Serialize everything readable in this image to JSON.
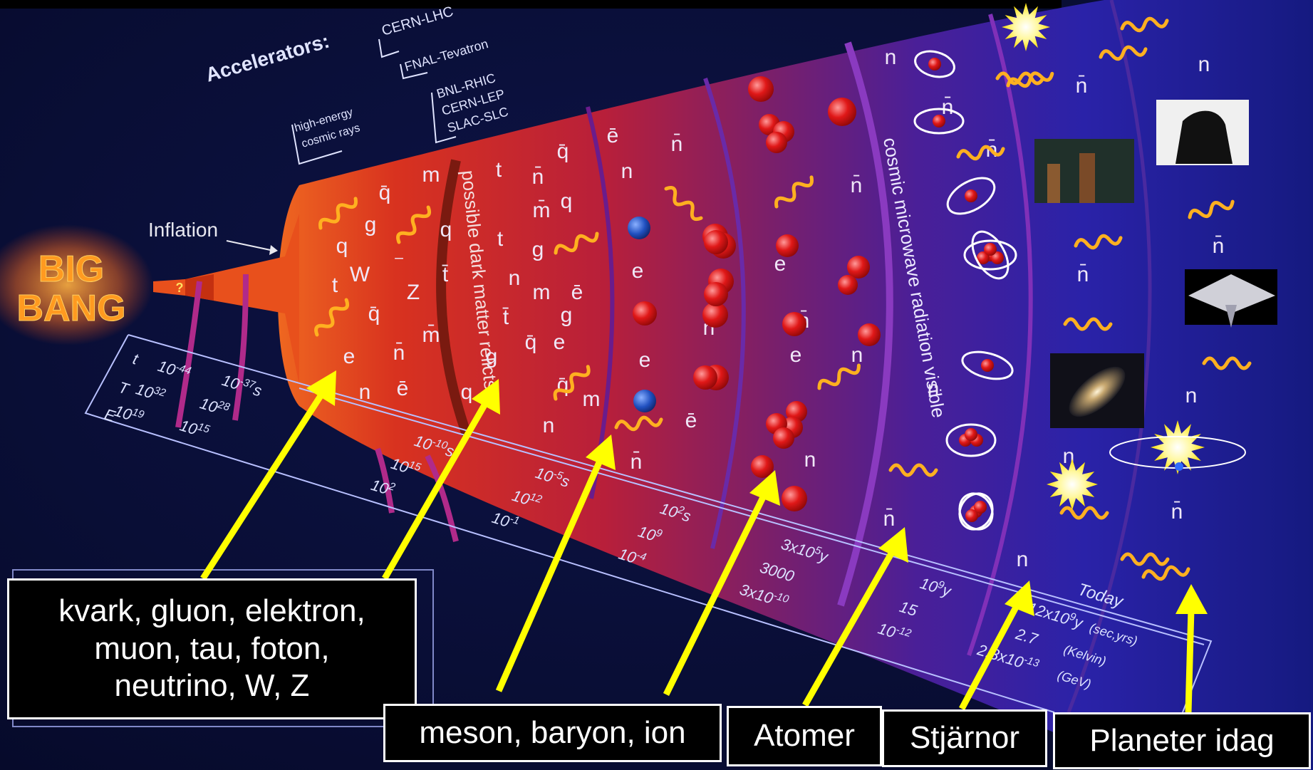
{
  "accelerators": {
    "heading": "Accelerators:",
    "cern_lhc": "CERN-LHC",
    "fnal": "FNAL-Tevatron",
    "group": [
      "BNL-RHIC",
      "CERN-LEP",
      "SLAC-SLC"
    ],
    "cosmic": [
      "high-energy",
      "cosmic rays"
    ]
  },
  "big_bang": {
    "line1": "BIG",
    "line2": "BANG"
  },
  "inflation_label": "Inflation",
  "question_mark": "?",
  "band_labels": {
    "dark_matter": "possible dark matter relicts",
    "cmb": "cosmic microwave radiation visible"
  },
  "timeline": {
    "row_labels": [
      "t",
      "T",
      "E"
    ],
    "first": {
      "t": "10",
      "t_exp": "-44",
      "T": "10",
      "T_exp": "32",
      "E": "10",
      "E_exp": "19"
    },
    "second": {
      "t": "10",
      "t_exp": "-37",
      "t_unit": "s",
      "T": "10",
      "T_exp": "28",
      "E": "10",
      "E_exp": "15"
    },
    "third": {
      "t": "10",
      "t_exp": "-10",
      "t_unit": "s",
      "T": "10",
      "T_exp": "15",
      "E": "10",
      "E_exp": "2"
    },
    "fourth": {
      "t": "10",
      "t_exp": "-5",
      "t_unit": "s",
      "T": "10",
      "T_exp": "12",
      "E": "10",
      "E_exp": "-1"
    },
    "fifth": {
      "t": "10",
      "t_exp": "2",
      "t_unit": "s",
      "T": "10",
      "T_exp": "9",
      "E": "10",
      "E_exp": "-4"
    },
    "sixth": {
      "t": "3x10",
      "t_exp": "5",
      "t_unit": "y",
      "T": "3000",
      "E": "3x10",
      "E_exp": "-10"
    },
    "seventh": {
      "t": "10",
      "t_exp": "9",
      "t_unit": "y",
      "T": "15",
      "E": "10",
      "E_exp": "-12"
    },
    "today": {
      "label": "Today",
      "t": "12x10",
      "t_exp": "9",
      "t_unit": "y",
      "t_units": "(sec,yrs)",
      "T": "2.7",
      "T_units": "(Kelvin)",
      "E": "2.3x10",
      "E_exp": "-13",
      "E_units": "(GeV)"
    }
  },
  "captions": {
    "quarks": "kvark, gluon, elektron,\nmuon, tau, foton,\nneutrino, W, Z",
    "hadrons": "meson, baryon, ion",
    "atoms": "Atomer",
    "stars": "Stjärnor",
    "planets": "Planeter idag"
  },
  "colors": {
    "background": "#000000",
    "cone_inner": "#e04a1a",
    "cone_outer": "#1b1f8c",
    "arrow": "#ffff00",
    "wave": "#ffb020",
    "big_bang": "#ff8a1a",
    "caption_border": "#ffffff"
  }
}
